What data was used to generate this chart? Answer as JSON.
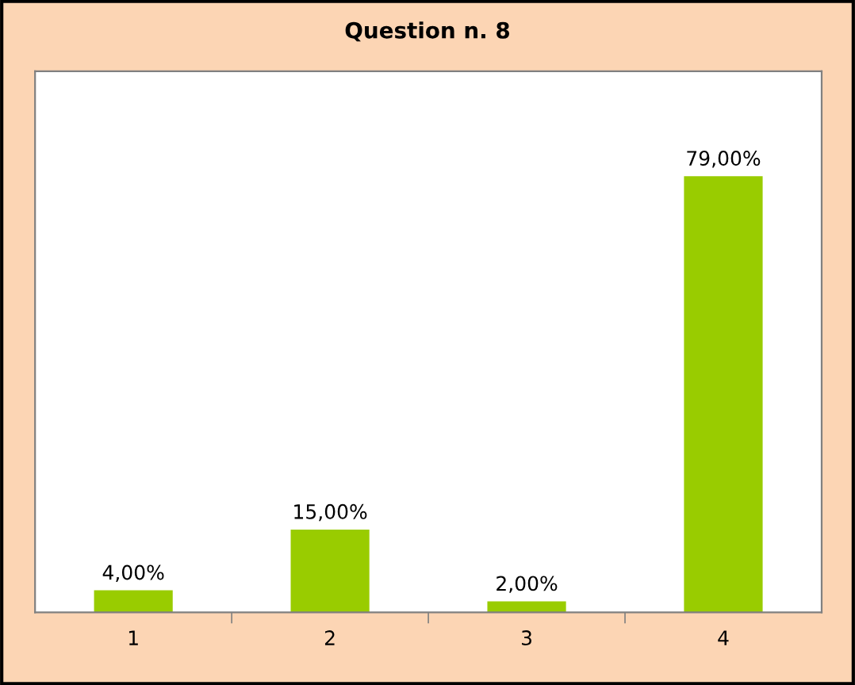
{
  "chart_data": {
    "type": "bar",
    "title": "Question n. 8",
    "categories": [
      "1",
      "2",
      "3",
      "4"
    ],
    "values": [
      4,
      15,
      2,
      79
    ],
    "value_labels": [
      "4,00%",
      "15,00%",
      "2,00%",
      "79,00%"
    ],
    "color": "#99cc00",
    "ylim": [
      0,
      98
    ],
    "legend": false
  }
}
